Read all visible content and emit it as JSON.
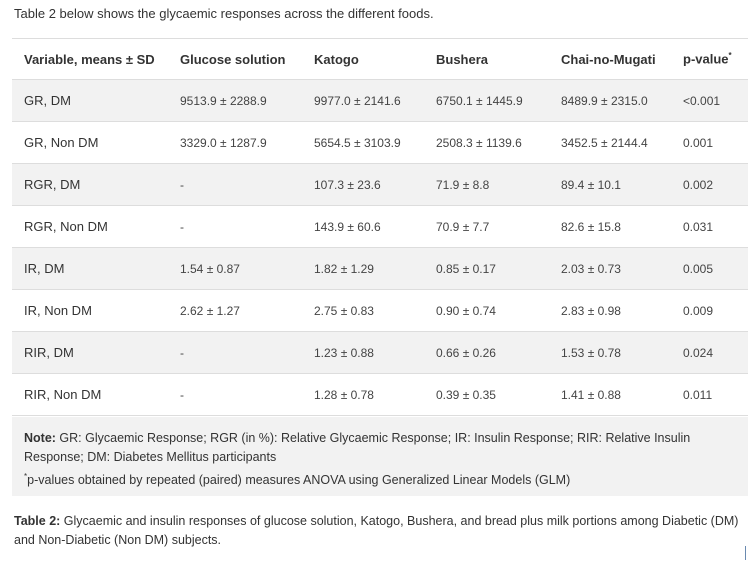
{
  "intro": "Table 2 below shows the glycaemic responses across the different foods.",
  "table": {
    "headers": [
      "Variable, means ± SD",
      "Glucose solution",
      "Katogo",
      "Bushera",
      "Chai-no-Mugati",
      "p-value"
    ],
    "header_p_sup": "*",
    "rows": [
      [
        "GR, DM",
        "9513.9 ± 2288.9",
        "9977.0 ± 2141.6",
        "6750.1 ± 1445.9",
        "8489.9 ± 2315.0",
        "<0.001"
      ],
      [
        "GR, Non DM",
        "3329.0 ± 1287.9",
        "5654.5 ± 3103.9",
        "2508.3 ± 1139.6",
        "3452.5 ± 2144.4",
        "0.001"
      ],
      [
        "RGR, DM",
        "-",
        "107.3 ± 23.6",
        "71.9 ± 8.8",
        "89.4 ± 10.1",
        "0.002"
      ],
      [
        "RGR, Non DM",
        "-",
        "143.9 ± 60.6",
        "70.9 ± 7.7",
        "82.6 ± 15.8",
        "0.031"
      ],
      [
        "IR, DM",
        "1.54 ± 0.87",
        "1.82 ± 1.29",
        "0.85 ± 0.17",
        "2.03 ± 0.73",
        "0.005"
      ],
      [
        "IR, Non DM",
        "2.62 ± 1.27",
        "2.75 ± 0.83",
        "0.90 ± 0.74",
        "2.83 ± 0.98",
        "0.009"
      ],
      [
        "RIR, DM",
        "-",
        "1.23 ± 0.88",
        "0.66 ± 0.26",
        "1.53 ± 0.78",
        "0.024"
      ],
      [
        "RIR, Non DM",
        "-",
        "1.28 ± 0.78",
        "0.39 ± 0.35",
        "1.41 ± 0.88",
        "0.011"
      ]
    ]
  },
  "note": {
    "label": "Note:",
    "text": " GR: Glycaemic Response; RGR (in %): Relative Glycaemic Response; IR: Insulin Response; RIR: Relative Insulin Response; DM: Diabetes Mellitus participants",
    "footnote_mark": "*",
    "footnote": "p-values obtained by repeated (paired) measures ANOVA using Generalized Linear Models (GLM)"
  },
  "caption": {
    "label": "Table 2:",
    "text": " Glycaemic and insulin responses of glucose solution, Katogo, Bushera, and bread plus milk portions among Diabetic (DM) and Non-Diabetic (Non DM) subjects."
  }
}
